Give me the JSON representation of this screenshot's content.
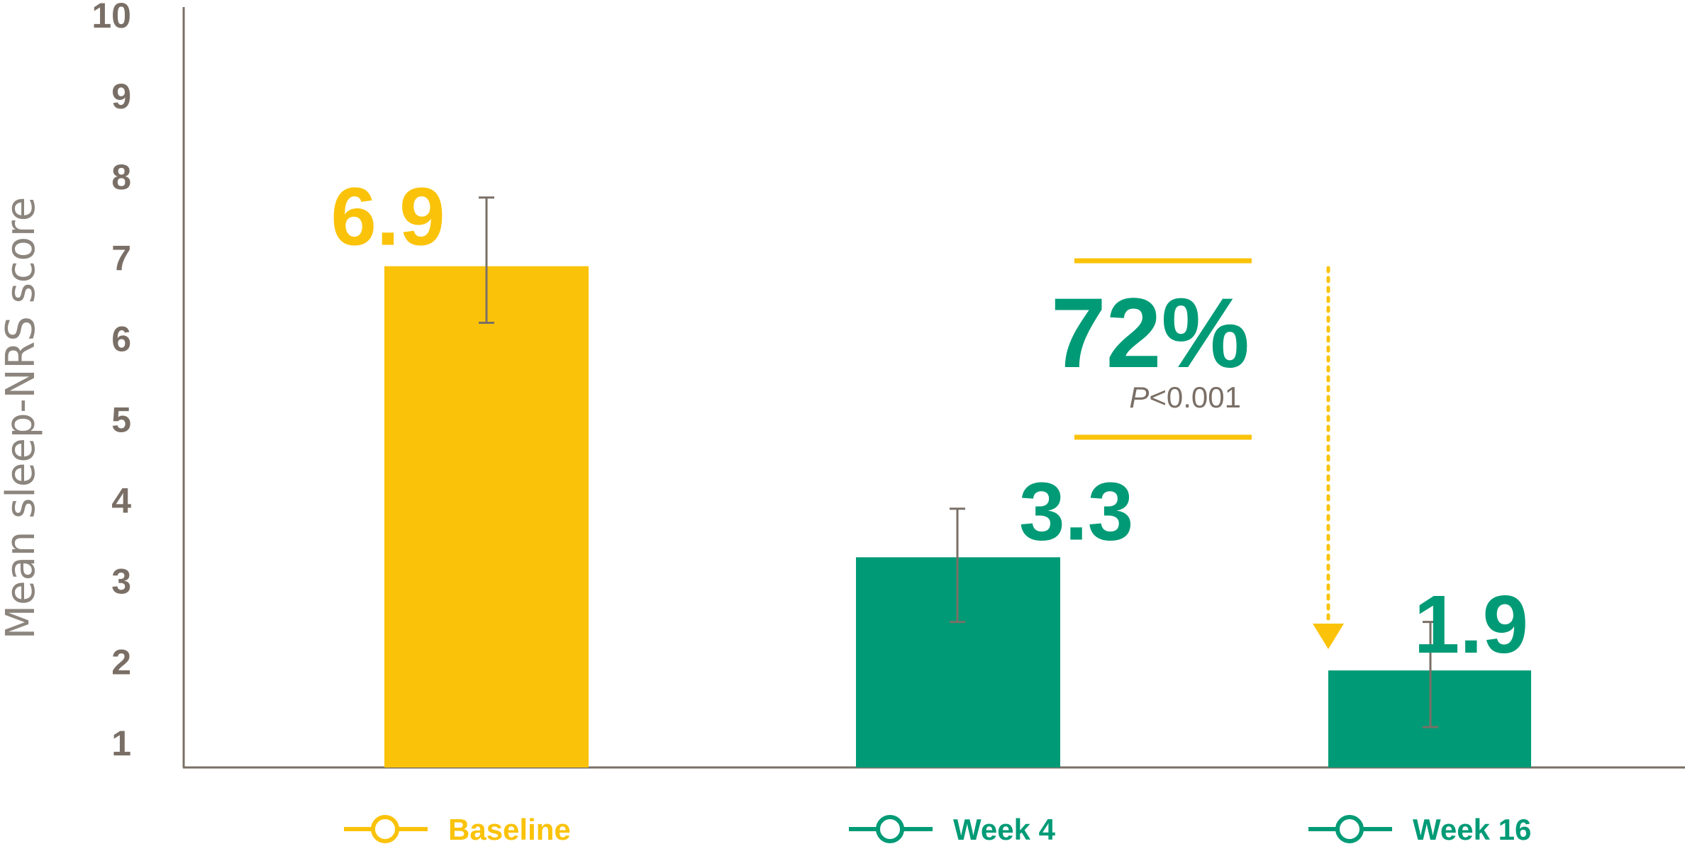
{
  "chart_data": {
    "type": "bar",
    "ylabel": "Mean sleep-NRS score",
    "xlabel": "",
    "title": "",
    "ylim": [
      0.7,
      10
    ],
    "yticks": [
      1,
      2,
      3,
      4,
      5,
      6,
      7,
      8,
      9,
      10
    ],
    "grid": false,
    "legend_position": "bottom",
    "categories": [
      "Baseline",
      "Week 4",
      "Week 16"
    ],
    "values": [
      6.9,
      3.3,
      1.9
    ],
    "value_labels": [
      "6.9",
      "3.3",
      "1.9"
    ],
    "error_low": [
      6.2,
      2.5,
      1.2
    ],
    "error_high": [
      7.75,
      3.9,
      2.5
    ],
    "colors": [
      "#FAC30A",
      "#009B76",
      "#009B76"
    ],
    "annotation": {
      "percent": "72%",
      "p_prefix": "P",
      "p_suffix": "<0.001",
      "color": "#009B76",
      "line_color": "#FAC30A"
    }
  },
  "colors": {
    "baseline": "#FAC30A",
    "week": "#009B76",
    "axis": "#7a6f66",
    "errorbar": "#7a6f66"
  }
}
